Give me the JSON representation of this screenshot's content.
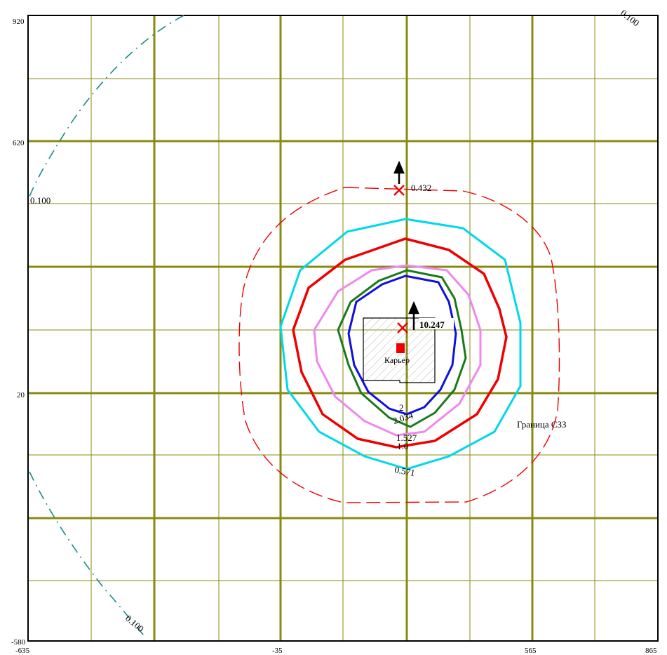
{
  "axes": {
    "x_ticks": [
      "-635",
      "-35",
      "565",
      "865"
    ],
    "y_ticks": [
      "920",
      "620",
      "20",
      "-580"
    ]
  },
  "isolines": [
    {
      "value": "0.100",
      "color": "#1a8a8a",
      "style": "dash-dot"
    },
    {
      "value": "0.571",
      "color": "#00d8e8",
      "style": "solid"
    },
    {
      "value": "1.0",
      "color": "#ee0000",
      "style": "solid"
    },
    {
      "value": "1.527",
      "color": "#ee88ee",
      "style": "solid"
    },
    {
      "value": "2.034",
      "color": "#1a7a1a",
      "style": "solid"
    },
    {
      "value": "2",
      "color": "#1010dd",
      "style": "solid"
    }
  ],
  "labels": {
    "iso_0100_left": "0.100",
    "iso_0100_topright": "0.100",
    "iso_0100_bottomleft": "0.100",
    "iso_0571": "0.571",
    "iso_1_0": "1.0",
    "iso_1_527": "1.527",
    "iso_2_034": "2.034",
    "iso_2": "2",
    "point_top_value": "0.432",
    "point_center_value": "10.247",
    "source_label": "Карьер",
    "boundary_label": "Граница СЗЗ"
  },
  "colors": {
    "grid": "#8a8a10",
    "boundary": "#ee0000",
    "marker": "#ee0000"
  }
}
